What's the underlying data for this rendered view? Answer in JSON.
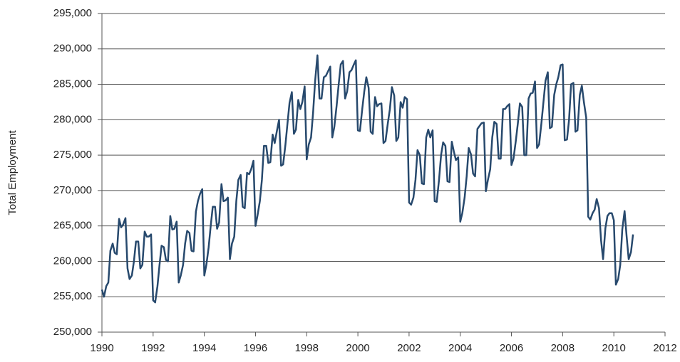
{
  "chart_data": {
    "type": "line",
    "ylabel": "Total Employment",
    "xlim": [
      1990,
      2012
    ],
    "xticks": [
      1990,
      1992,
      1994,
      1996,
      1998,
      2000,
      2002,
      2004,
      2006,
      2008,
      2010,
      2012
    ],
    "ylim": [
      250000,
      295000
    ],
    "yticks": [
      {
        "value": 250000,
        "label": "250,000"
      },
      {
        "value": 255000,
        "label": "255,000"
      },
      {
        "value": 260000,
        "label": "260,000"
      },
      {
        "value": 265000,
        "label": "265,000"
      },
      {
        "value": 270000,
        "label": "270,000"
      },
      {
        "value": 275000,
        "label": "275,000"
      },
      {
        "value": 280000,
        "label": "280,000"
      },
      {
        "value": 285000,
        "label": "285,000"
      },
      {
        "value": 290000,
        "label": "290,000"
      },
      {
        "value": 295000,
        "label": "295,000"
      }
    ],
    "grid": true,
    "x": [
      1990,
      1990.08,
      1990.17,
      1990.25,
      1990.33,
      1990.42,
      1990.5,
      1990.58,
      1990.67,
      1990.75,
      1990.83,
      1990.92,
      1991,
      1991.08,
      1991.17,
      1991.25,
      1991.33,
      1991.42,
      1991.5,
      1991.58,
      1991.67,
      1991.75,
      1991.83,
      1991.92,
      1992,
      1992.08,
      1992.17,
      1992.25,
      1992.33,
      1992.42,
      1992.5,
      1992.58,
      1992.67,
      1992.75,
      1992.83,
      1992.92,
      1993,
      1993.08,
      1993.17,
      1993.25,
      1993.33,
      1993.42,
      1993.5,
      1993.58,
      1993.67,
      1993.75,
      1993.83,
      1993.92,
      1994,
      1994.08,
      1994.17,
      1994.25,
      1994.33,
      1994.42,
      1994.5,
      1994.58,
      1994.67,
      1994.75,
      1994.83,
      1994.92,
      1995,
      1995.08,
      1995.17,
      1995.25,
      1995.33,
      1995.42,
      1995.5,
      1995.58,
      1995.67,
      1995.75,
      1995.83,
      1995.92,
      1996,
      1996.08,
      1996.17,
      1996.25,
      1996.33,
      1996.42,
      1996.5,
      1996.58,
      1996.67,
      1996.75,
      1996.83,
      1996.92,
      1997,
      1997.08,
      1997.17,
      1997.25,
      1997.33,
      1997.42,
      1997.5,
      1997.58,
      1997.67,
      1997.75,
      1997.83,
      1997.92,
      1998,
      1998.08,
      1998.17,
      1998.25,
      1998.33,
      1998.42,
      1998.5,
      1998.58,
      1998.67,
      1998.75,
      1998.83,
      1998.92,
      1999,
      1999.08,
      1999.17,
      1999.25,
      1999.33,
      1999.42,
      1999.5,
      1999.58,
      1999.67,
      1999.75,
      1999.83,
      1999.92,
      2000,
      2000.08,
      2000.17,
      2000.25,
      2000.33,
      2000.42,
      2000.5,
      2000.58,
      2000.67,
      2000.75,
      2000.83,
      2000.92,
      2001,
      2001.08,
      2001.17,
      2001.25,
      2001.33,
      2001.42,
      2001.5,
      2001.58,
      2001.67,
      2001.75,
      2001.83,
      2001.92,
      2002,
      2002.08,
      2002.17,
      2002.25,
      2002.33,
      2002.42,
      2002.5,
      2002.58,
      2002.67,
      2002.75,
      2002.83,
      2002.92,
      2003,
      2003.08,
      2003.17,
      2003.25,
      2003.33,
      2003.42,
      2003.5,
      2003.58,
      2003.67,
      2003.75,
      2003.83,
      2003.92,
      2004,
      2004.08,
      2004.17,
      2004.25,
      2004.33,
      2004.42,
      2004.5,
      2004.58,
      2004.67,
      2004.75,
      2004.83,
      2004.92,
      2005,
      2005.08,
      2005.17,
      2005.25,
      2005.33,
      2005.42,
      2005.5,
      2005.58,
      2005.67,
      2005.75,
      2005.83,
      2005.92,
      2006,
      2006.08,
      2006.17,
      2006.25,
      2006.33,
      2006.42,
      2006.5,
      2006.58,
      2006.67,
      2006.75,
      2006.83,
      2006.92,
      2007,
      2007.08,
      2007.17,
      2007.25,
      2007.33,
      2007.42,
      2007.5,
      2007.58,
      2007.67,
      2007.75,
      2007.83,
      2007.92,
      2008,
      2008.08,
      2008.17,
      2008.25,
      2008.33,
      2008.42,
      2008.5,
      2008.58,
      2008.67,
      2008.75,
      2008.83,
      2008.92,
      2009,
      2009.08,
      2009.17,
      2009.25,
      2009.33,
      2009.42,
      2009.5,
      2009.58,
      2009.67,
      2009.75,
      2009.83,
      2009.92,
      2010,
      2010.08,
      2010.17,
      2010.25,
      2010.33,
      2010.42,
      2010.5,
      2010.58,
      2010.67,
      2010.75
    ],
    "series": [
      {
        "color": "#27496d",
        "values": [
          256000,
          255000,
          256500,
          257000,
          261500,
          262500,
          261200,
          261000,
          266000,
          264800,
          265200,
          266100,
          259000,
          257500,
          258000,
          260000,
          262800,
          262800,
          259000,
          259500,
          264200,
          263500,
          263500,
          263800,
          254500,
          254200,
          256500,
          259500,
          262200,
          262000,
          260200,
          260000,
          266400,
          264500,
          264600,
          265600,
          257000,
          258000,
          259500,
          262500,
          264300,
          264000,
          261500,
          261400,
          267000,
          268500,
          269500,
          270200,
          258000,
          259500,
          262000,
          265000,
          267700,
          267700,
          264600,
          265500,
          270900,
          268500,
          268600,
          269000,
          260300,
          262500,
          263500,
          268500,
          271500,
          272200,
          267700,
          267500,
          272500,
          272300,
          273000,
          274200,
          265000,
          266500,
          268500,
          271500,
          276300,
          276300,
          273900,
          274000,
          277900,
          276700,
          278300,
          280000,
          273500,
          273700,
          276500,
          279500,
          282400,
          283900,
          278000,
          278600,
          282800,
          281500,
          282500,
          284700,
          274400,
          276500,
          277500,
          281000,
          285500,
          289100,
          283000,
          283000,
          286000,
          286200,
          286800,
          287500,
          277500,
          279000,
          282000,
          285000,
          287800,
          288300,
          283000,
          284000,
          286700,
          287000,
          287700,
          288400,
          278500,
          278400,
          281500,
          284000,
          286000,
          284500,
          278300,
          278000,
          283200,
          281900,
          282200,
          282300,
          276700,
          277000,
          279500,
          281500,
          284600,
          283400,
          277000,
          277500,
          282500,
          281700,
          283200,
          282900,
          268300,
          268000,
          269000,
          271500,
          275700,
          275000,
          271000,
          270900,
          277500,
          278600,
          277500,
          278500,
          268500,
          268400,
          271500,
          275000,
          276800,
          276300,
          271300,
          271200,
          276900,
          275500,
          274300,
          274700,
          265600,
          266800,
          269000,
          272000,
          276000,
          275100,
          272400,
          272000,
          278700,
          279100,
          279500,
          279600,
          269900,
          271500,
          273000,
          277500,
          279700,
          279400,
          274500,
          274500,
          281500,
          281500,
          281900,
          282200,
          273600,
          274500,
          277000,
          279500,
          282300,
          281800,
          275000,
          275000,
          283000,
          283700,
          283800,
          285400,
          276000,
          276500,
          279500,
          282500,
          285500,
          286700,
          278800,
          279000,
          283500,
          285000,
          286000,
          287700,
          287800,
          277100,
          277200,
          280000,
          285000,
          285200,
          278300,
          278500,
          283500,
          284800,
          282500,
          280300,
          266300,
          265900,
          266800,
          267300,
          268800,
          267500,
          263000,
          260300,
          264700,
          266400,
          266800,
          266800,
          265800,
          256700,
          257500,
          259500,
          264500,
          267100,
          263500,
          260300,
          261300,
          263800
        ]
      }
    ]
  }
}
